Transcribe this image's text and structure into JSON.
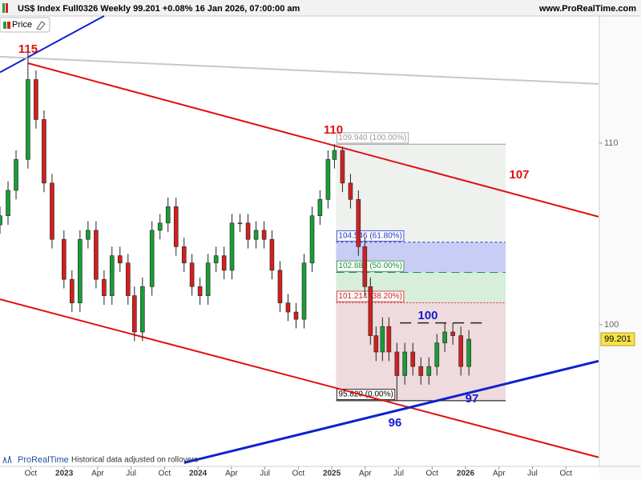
{
  "chart_data": {
    "type": "candlestick",
    "title": "US$ Index Full0326 Weekly 99.201 +0.08% 16 Jan 2026, 07:00:00 am",
    "source": "www.ProRealTime.com",
    "indicator": "Price",
    "footer_brand": "ProRealTime",
    "footer_note": "Historical data adjusted on rollovers",
    "last": 99.201,
    "last_color": "#f7e24a",
    "up_color": "#1a9c3a",
    "down_color": "#d02020",
    "xlim": [
      2022.52,
      2027.0
    ],
    "ylim": [
      92.2,
      117.0
    ],
    "xticks": [
      {
        "value": 2022.75,
        "label": "Oct"
      },
      2023,
      {
        "value": 2023.25,
        "label": "Apr"
      },
      {
        "value": 2023.5,
        "label": "Jul"
      },
      {
        "value": 2023.75,
        "label": "Oct"
      },
      2024,
      {
        "value": 2024.25,
        "label": "Apr"
      },
      {
        "value": 2024.5,
        "label": "Jul"
      },
      {
        "value": 2024.75,
        "label": "Oct"
      },
      2025,
      {
        "value": 2025.25,
        "label": "Apr"
      },
      {
        "value": 2025.5,
        "label": "Jul"
      },
      {
        "value": 2025.75,
        "label": "Oct"
      },
      2026,
      {
        "value": 2026.25,
        "label": "Apr"
      },
      {
        "value": 2026.5,
        "label": "Jul"
      },
      {
        "value": 2026.75,
        "label": "Oct"
      }
    ],
    "yticks": [
      100,
      110
    ],
    "x": [
      2022.52,
      2022.58,
      2022.64,
      2022.729,
      2022.789,
      2022.849,
      2022.909,
      2022.998,
      2023.058,
      2023.118,
      2023.178,
      2023.238,
      2023.298,
      2023.357,
      2023.417,
      2023.477,
      2023.525,
      2023.585,
      2023.656,
      2023.716,
      2023.776,
      2023.836,
      2023.896,
      2023.955,
      2024.015,
      2024.075,
      2024.135,
      2024.195,
      2024.254,
      2024.314,
      2024.374,
      2024.434,
      2024.494,
      2024.553,
      2024.613,
      2024.673,
      2024.733,
      2024.793,
      2024.853,
      2024.912,
      2024.972,
      2025.02,
      2025.08,
      2025.14,
      2025.199,
      2025.247,
      2025.289,
      2025.331,
      2025.379,
      2025.427,
      2025.487,
      2025.546,
      2025.606,
      2025.666,
      2025.726,
      2025.786,
      2025.845,
      2025.905,
      2025.965,
      2026.025
    ],
    "open": [
      105.5,
      106.0,
      107.4,
      109.1,
      113.5,
      111.3,
      107.8,
      104.7,
      102.5,
      101.2,
      104.7,
      105.2,
      102.5,
      101.6,
      103.8,
      103.4,
      101.6,
      99.6,
      102.1,
      105.2,
      105.6,
      106.5,
      104.3,
      103.4,
      102.1,
      101.6,
      103.4,
      103.8,
      103.0,
      105.6,
      105.6,
      104.7,
      105.2,
      104.7,
      103.0,
      101.2,
      100.7,
      100.3,
      103.4,
      106.0,
      106.9,
      109.1,
      109.6,
      107.8,
      106.9,
      104.3,
      102.1,
      99.4,
      98.5,
      99.9,
      98.5,
      97.2,
      98.5,
      97.7,
      97.2,
      97.7,
      99.0,
      99.6,
      99.4,
      97.7
    ],
    "high": [
      106.5,
      107.9,
      109.6,
      115.0,
      114.0,
      111.8,
      108.3,
      105.2,
      103.0,
      105.2,
      105.7,
      105.7,
      103.0,
      104.3,
      104.3,
      103.9,
      102.1,
      102.6,
      105.7,
      106.1,
      107.0,
      107.0,
      104.8,
      103.9,
      102.6,
      103.9,
      104.3,
      104.3,
      106.1,
      106.1,
      106.1,
      105.7,
      105.7,
      105.2,
      103.5,
      101.7,
      101.2,
      103.9,
      106.5,
      107.4,
      109.6,
      109.94,
      109.8,
      108.3,
      107.4,
      104.8,
      102.6,
      99.9,
      100.4,
      100.4,
      99.0,
      99.0,
      99.0,
      98.2,
      98.2,
      99.5,
      100.1,
      100.1,
      99.9,
      99.7
    ],
    "low": [
      105.0,
      105.5,
      106.9,
      108.6,
      110.8,
      107.3,
      104.2,
      102.0,
      100.7,
      100.7,
      104.2,
      102.0,
      101.1,
      101.1,
      102.9,
      101.1,
      99.1,
      99.1,
      101.6,
      104.7,
      105.1,
      103.8,
      102.9,
      101.6,
      101.1,
      101.1,
      102.9,
      102.5,
      102.5,
      105.1,
      104.2,
      104.2,
      104.2,
      102.5,
      100.7,
      100.2,
      99.8,
      99.8,
      102.9,
      105.5,
      106.4,
      108.6,
      107.3,
      106.4,
      103.8,
      101.6,
      98.9,
      98.0,
      98.0,
      98.0,
      95.82,
      96.7,
      97.2,
      96.7,
      96.7,
      97.2,
      98.5,
      98.9,
      97.2,
      97.2
    ],
    "close": [
      106.0,
      107.4,
      109.1,
      113.5,
      111.3,
      107.8,
      104.7,
      102.5,
      101.2,
      104.7,
      105.2,
      102.5,
      101.6,
      103.8,
      103.4,
      101.6,
      99.6,
      102.1,
      105.2,
      105.6,
      106.5,
      104.3,
      103.4,
      102.1,
      101.6,
      103.4,
      103.8,
      103.0,
      105.6,
      105.6,
      104.7,
      105.2,
      104.7,
      103.0,
      101.2,
      100.7,
      100.3,
      103.4,
      106.0,
      106.9,
      109.1,
      109.6,
      107.8,
      106.9,
      104.3,
      102.1,
      99.4,
      98.5,
      99.9,
      98.5,
      97.2,
      98.5,
      97.7,
      97.2,
      97.7,
      99.0,
      99.6,
      99.4,
      97.7,
      99.201
    ],
    "trendlines": [
      {
        "color": "#e01010",
        "x": [
          2022.729,
          2026.994
        ],
        "y": [
          114.4,
          105.95
        ]
      },
      {
        "color": "#e01010",
        "x": [
          2022.52,
          2026.994
        ],
        "y": [
          101.4,
          92.7
        ]
      },
      {
        "color": "#1020d0",
        "x": [
          2023.896,
          2026.994
        ],
        "y": [
          92.4,
          98.0
        ]
      },
      {
        "color": "#1020d0",
        "x": [
          2022.52,
          2023.298
        ],
        "y": [
          113.9,
          117.0
        ]
      },
      {
        "color": "#c8c8c8",
        "x": [
          2022.52,
          2026.994
        ],
        "y": [
          114.76,
          113.26
        ]
      },
      {
        "color": "#222222",
        "x": [
          2025.51,
          2026.14
        ],
        "y": [
          100.1,
          100.1
        ]
      }
    ],
    "fib": {
      "x": [
        2025.032,
        2026.3
      ],
      "levels": [
        {
          "value": 109.94,
          "label": "109.940 (100.00%)",
          "color": "#999999"
        },
        {
          "value": 104.546,
          "label": "104.546 (61.80%)",
          "color": "#2030c0"
        },
        {
          "value": 102.88,
          "label": "102.880 (50.00%)",
          "color": "#209040"
        },
        {
          "value": 101.214,
          "label": "101.214 (38.20%)",
          "color": "#d02020"
        },
        {
          "value": 95.82,
          "label": "95.820 (0.00%)",
          "color": "#000000"
        }
      ],
      "zones": [
        "#eef1ee",
        "#c9cdf6",
        "#d6eedb",
        "#efdadd"
      ]
    },
    "annotations": [
      {
        "text": "115",
        "color": "#e01010"
      },
      {
        "text": "110",
        "color": "#e01010"
      },
      {
        "text": "107",
        "color": "#e01010"
      },
      {
        "text": "100",
        "color": "#1020d0"
      },
      {
        "text": "97",
        "color": "#1020d0"
      },
      {
        "text": "96",
        "color": "#1020d0"
      }
    ]
  }
}
